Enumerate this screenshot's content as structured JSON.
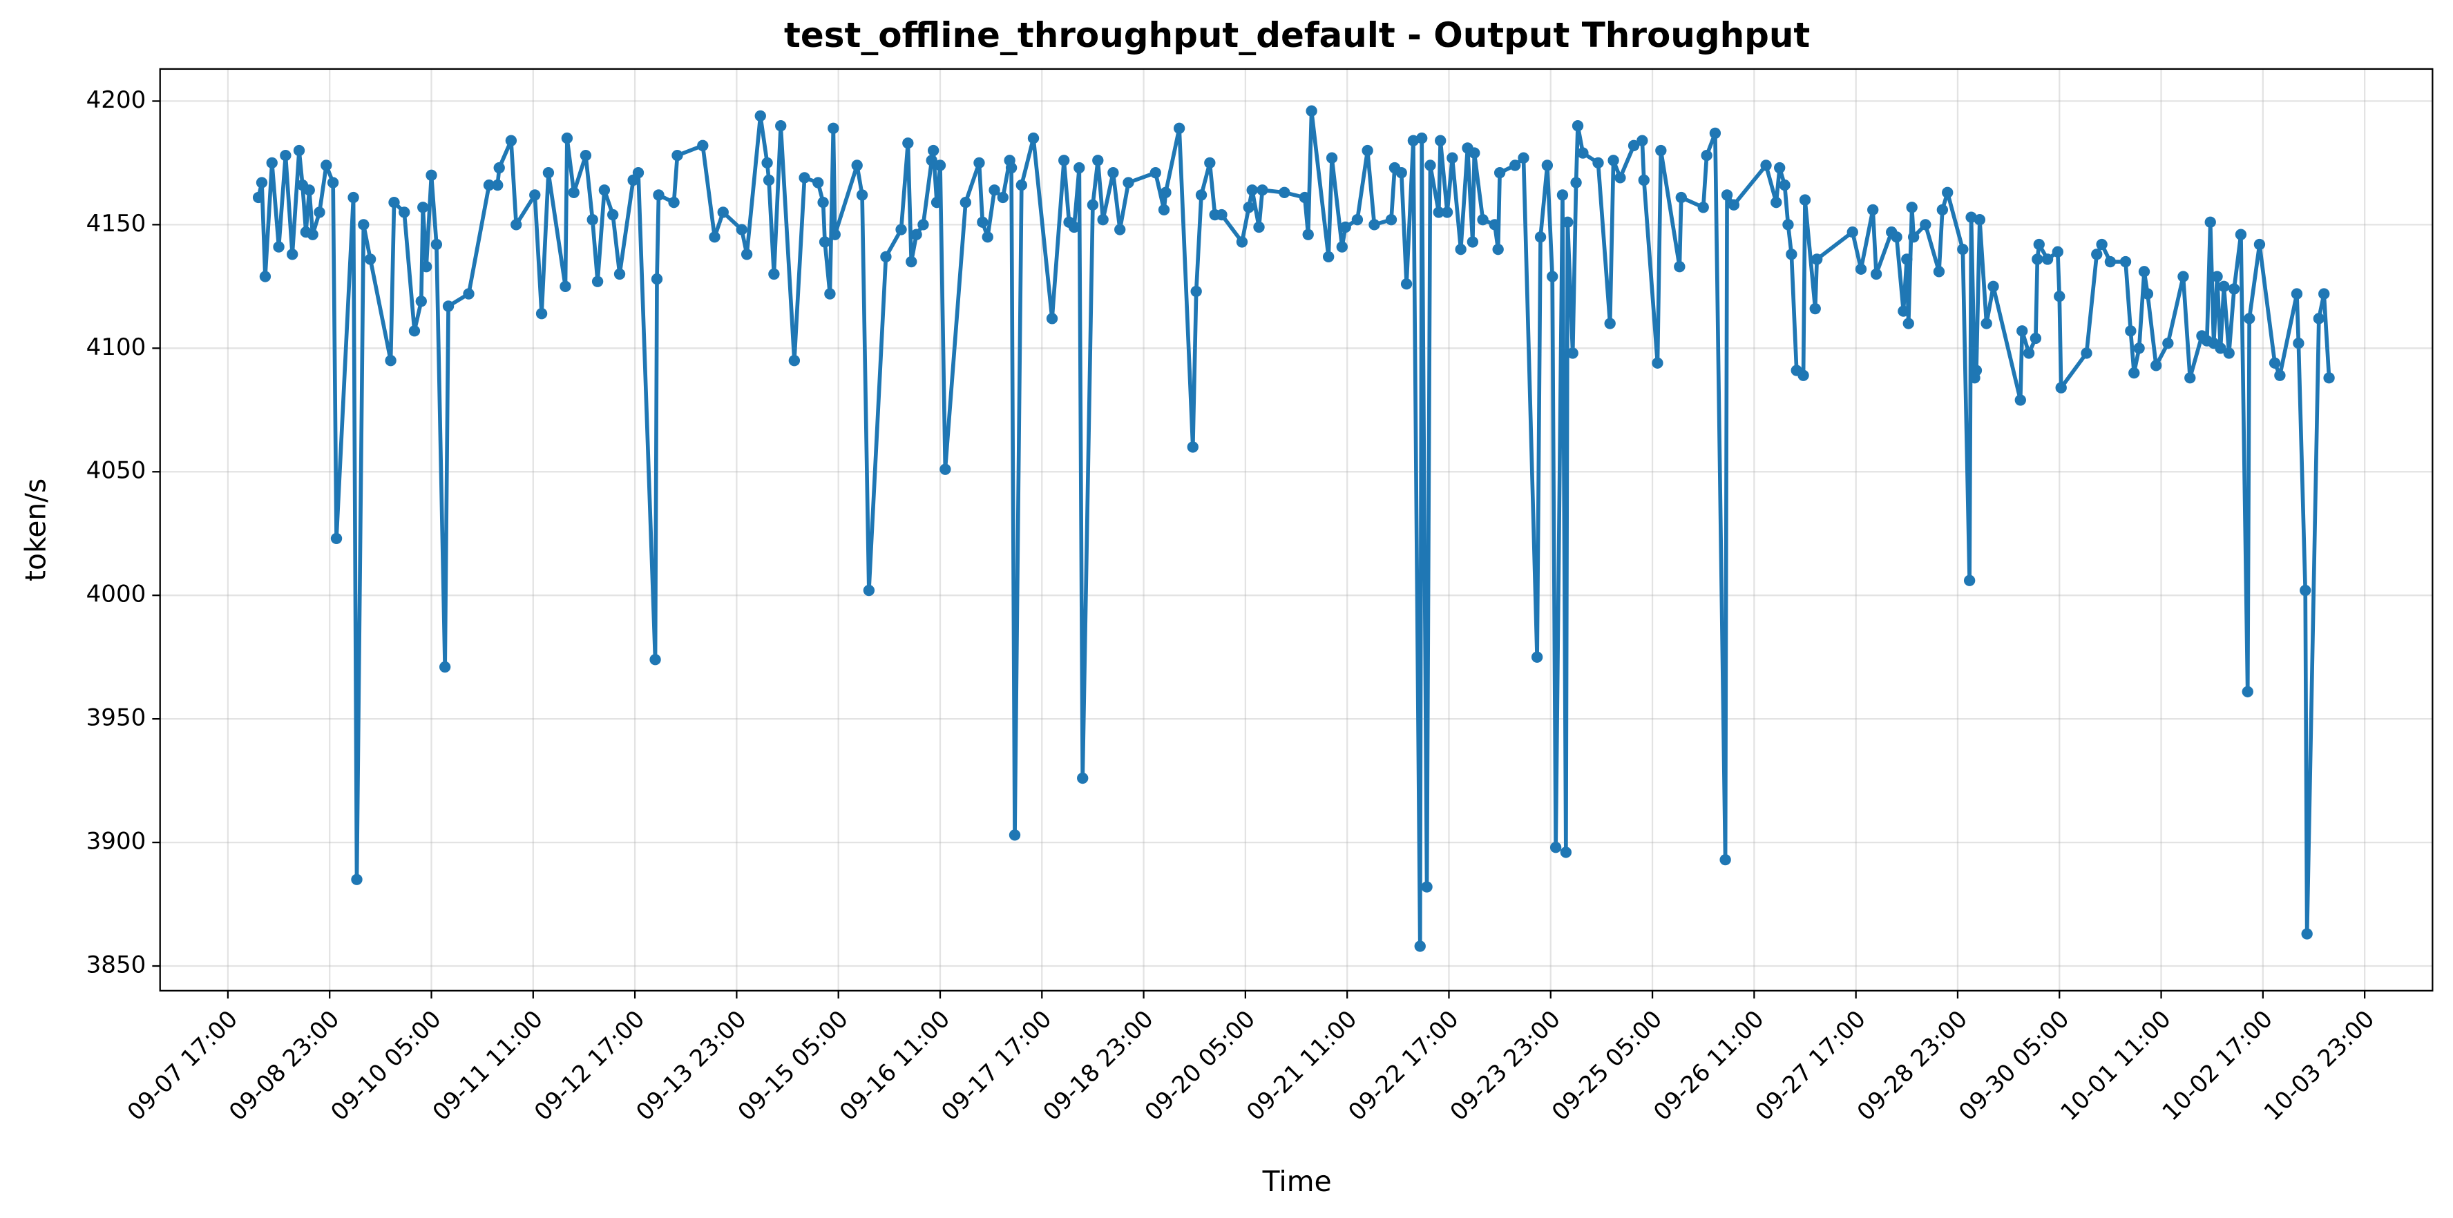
{
  "chart_data": {
    "type": "line",
    "title": "test_offline_throughput_default - Output Throughput",
    "xlabel": "Time",
    "ylabel": "token/s",
    "color": "#1f77b4",
    "grid": true,
    "xlim": [
      "09-06 21:00",
      "10-04 19:00"
    ],
    "xticks": [
      "09-07 17:00",
      "09-08 23:00",
      "09-10 05:00",
      "09-11 11:00",
      "09-12 17:00",
      "09-13 23:00",
      "09-15 05:00",
      "09-16 11:00",
      "09-17 17:00",
      "09-18 23:00",
      "09-20 05:00",
      "09-21 11:00",
      "09-22 17:00",
      "09-23 23:00",
      "09-25 05:00",
      "09-26 11:00",
      "09-27 17:00",
      "09-28 23:00",
      "09-30 05:00",
      "10-01 11:00",
      "10-02 17:00",
      "10-03 23:00"
    ],
    "ylim": [
      3840,
      4213
    ],
    "yticks": [
      3850,
      3900,
      3950,
      4000,
      4050,
      4100,
      4150,
      4200
    ],
    "x": [
      "09-08 02:00",
      "09-08 03:00",
      "09-08 04:00",
      "09-08 06:00",
      "09-08 08:00",
      "09-08 10:00",
      "09-08 12:00",
      "09-08 14:00",
      "09-08 15:00",
      "09-08 16:00",
      "09-08 17:00",
      "09-08 18:00",
      "09-08 20:00",
      "09-08 22:00",
      "09-09 00:00",
      "09-09 01:00",
      "09-09 06:00",
      "09-09 07:00",
      "09-09 09:00",
      "09-09 11:00",
      "09-09 17:00",
      "09-09 18:00",
      "09-09 21:00",
      "09-10 00:00",
      "09-10 02:00",
      "09-10 02:30",
      "09-10 03:30",
      "09-10 05:00",
      "09-10 06:30",
      "09-10 09:00",
      "09-10 10:00",
      "09-10 16:00",
      "09-10 22:00",
      "09-11 00:30",
      "09-11 01:00",
      "09-11 04:30",
      "09-11 06:00",
      "09-11 11:30",
      "09-11 13:30",
      "09-11 15:30",
      "09-11 20:30",
      "09-11 21:00",
      "09-11 23:00",
      "09-12 02:30",
      "09-12 04:30",
      "09-12 06:00",
      "09-12 08:00",
      "09-12 10:30",
      "09-12 12:30",
      "09-12 16:30",
      "09-12 18:00",
      "09-12 23:00",
      "09-12 23:30",
      "09-13 00:00",
      "09-13 04:30",
      "09-13 05:30",
      "09-13 13:00",
      "09-13 16:30",
      "09-13 19:00",
      "09-14 00:30",
      "09-14 02:00",
      "09-14 06:00",
      "09-14 08:00",
      "09-14 08:30",
      "09-14 10:00",
      "09-14 12:00",
      "09-14 16:00",
      "09-14 19:00",
      "09-14 23:00",
      "09-15 00:30",
      "09-15 01:00",
      "09-15 02:30",
      "09-15 03:30",
      "09-15 04:00",
      "09-15 10:30",
      "09-15 12:00",
      "09-15 14:00",
      "09-15 19:00",
      "09-15 23:30",
      "09-16 01:30",
      "09-16 02:30",
      "09-16 04:00",
      "09-16 06:00",
      "09-16 08:30",
      "09-16 09:00",
      "09-16 10:00",
      "09-16 11:00",
      "09-16 12:30",
      "09-16 18:30",
      "09-16 22:30",
      "09-16 23:30",
      "09-17 01:00",
      "09-17 03:00",
      "09-17 05:30",
      "09-17 07:30",
      "09-17 08:00",
      "09-17 09:00",
      "09-17 11:00",
      "09-17 14:30",
      "09-17 20:00",
      "09-17 23:30",
      "09-18 01:00",
      "09-18 02:30",
      "09-18 04:00",
      "09-18 05:00",
      "09-18 08:00",
      "09-18 09:30",
      "09-18 11:00",
      "09-18 14:00",
      "09-18 16:00",
      "09-18 18:30",
      "09-19 02:30",
      "09-19 05:00",
      "09-19 05:30",
      "09-19 09:30",
      "09-19 13:30",
      "09-19 14:30",
      "09-19 16:00",
      "09-19 18:30",
      "09-19 20:00",
      "09-19 22:00",
      "09-20 04:00",
      "09-20 06:00",
      "09-20 07:00",
      "09-20 09:00",
      "09-20 10:00",
      "09-20 16:30",
      "09-20 22:30",
      "09-20 23:30",
      "09-21 00:30",
      "09-21 05:30",
      "09-21 06:30",
      "09-21 09:30",
      "09-21 10:30",
      "09-21 14:00",
      "09-21 17:00",
      "09-21 19:00",
      "09-22 00:00",
      "09-22 01:00",
      "09-22 03:00",
      "09-22 04:30",
      "09-22 06:30",
      "09-22 08:30",
      "09-22 09:00",
      "09-22 10:30",
      "09-22 11:30",
      "09-22 14:00",
      "09-22 14:30",
      "09-22 16:30",
      "09-22 18:00",
      "09-22 20:30",
      "09-22 22:30",
      "09-23 00:00",
      "09-23 00:30",
      "09-23 03:00",
      "09-23 06:30",
      "09-23 07:30",
      "09-23 08:00",
      "09-23 12:30",
      "09-23 15:00",
      "09-23 19:00",
      "09-23 20:00",
      "09-23 22:00",
      "09-23 23:30",
      "09-24 00:30",
      "09-24 02:30",
      "09-24 03:30",
      "09-24 04:00",
      "09-24 05:30",
      "09-24 06:30",
      "09-24 07:00",
      "09-24 08:30",
      "09-24 13:00",
      "09-24 16:30",
      "09-24 17:30",
      "09-24 19:30",
      "09-24 23:30",
      "09-25 02:00",
      "09-25 02:30",
      "09-25 06:30",
      "09-25 07:30",
      "09-25 13:00",
      "09-25 13:30",
      "09-25 20:00",
      "09-25 21:00",
      "09-25 23:30",
      "09-26 02:30",
      "09-26 03:00",
      "09-26 05:00",
      "09-26 14:30",
      "09-26 17:30",
      "09-26 18:30",
      "09-26 20:00",
      "09-26 21:00",
      "09-26 22:00",
      "09-26 23:30",
      "09-27 01:30",
      "09-27 02:00",
      "09-27 05:00",
      "09-27 05:30",
      "09-27 16:00",
      "09-27 18:30",
      "09-27 22:00",
      "09-27 23:00",
      "09-28 03:30",
      "09-28 05:00",
      "09-28 07:00",
      "09-28 08:00",
      "09-28 08:30",
      "09-28 09:30",
      "09-28 10:00",
      "09-28 13:30",
      "09-28 17:30",
      "09-28 18:30",
      "09-28 20:00",
      "09-29 00:30",
      "09-29 02:30",
      "09-29 03:00",
      "09-29 04:00",
      "09-29 04:30",
      "09-29 05:30",
      "09-29 07:30",
      "09-29 09:30",
      "09-29 17:30",
      "09-29 18:00",
      "09-29 20:00",
      "09-29 22:00",
      "09-29 22:30",
      "09-29 23:00",
      "09-30 01:30",
      "09-30 04:30",
      "09-30 05:00",
      "09-30 05:30",
      "09-30 13:00",
      "09-30 16:00",
      "09-30 17:30",
      "09-30 20:00",
      "10-01 00:30",
      "10-01 02:00",
      "10-01 03:00",
      "10-01 04:30",
      "10-01 06:00",
      "10-01 07:00",
      "10-01 09:30",
      "10-01 13:00",
      "10-01 17:30",
      "10-01 19:30",
      "10-01 23:00",
      "10-02 00:30",
      "10-02 01:30",
      "10-02 02:30",
      "10-02 03:30",
      "10-02 04:30",
      "10-02 05:30",
      "10-02 07:00",
      "10-02 08:30",
      "10-02 10:30",
      "10-02 12:30",
      "10-02 13:00",
      "10-02 16:00",
      "10-02 20:30",
      "10-02 22:00",
      "10-03 03:00",
      "10-03 03:30",
      "10-03 05:30",
      "10-03 06:00",
      "10-03 09:30",
      "10-03 11:00",
      "10-03 12:30"
    ],
    "values": [
      4161,
      4167,
      4129,
      4175,
      4141,
      4178,
      4138,
      4180,
      4166,
      4147,
      4164,
      4146,
      4155,
      4174,
      4167,
      4023,
      4161,
      3885,
      4150,
      4136,
      4095,
      4159,
      4155,
      4107,
      4119,
      4157,
      4133,
      4170,
      4142,
      3971,
      4117,
      4122,
      4166,
      4166,
      4173,
      4184,
      4150,
      4162,
      4114,
      4171,
      4125,
      4185,
      4163,
      4178,
      4152,
      4127,
      4164,
      4154,
      4130,
      4168,
      4171,
      3974,
      4128,
      4162,
      4159,
      4178,
      4182,
      4145,
      4155,
      4148,
      4138,
      4194,
      4175,
      4168,
      4130,
      4190,
      4095,
      4169,
      4167,
      4159,
      4143,
      4122,
      4189,
      4146,
      4174,
      4162,
      4002,
      4137,
      4148,
      4183,
      4135,
      4146,
      4150,
      4176,
      4180,
      4159,
      4174,
      4051,
      4159,
      4175,
      4151,
      4145,
      4164,
      4161,
      4176,
      4173,
      3903,
      4166,
      4185,
      4112,
      4176,
      4151,
      4149,
      4173,
      3926,
      4158,
      4176,
      4152,
      4171,
      4148,
      4167,
      4171,
      4156,
      4163,
      4189,
      4060,
      4123,
      4162,
      4175,
      4154,
      4154,
      4143,
      4157,
      4164,
      4149,
      4164,
      4163,
      4161,
      4146,
      4196,
      4137,
      4177,
      4141,
      4149,
      4152,
      4180,
      4150,
      4152,
      4173,
      4171,
      4126,
      4184,
      3858,
      4185,
      3882,
      4174,
      4155,
      4184,
      4155,
      4177,
      4140,
      4181,
      4143,
      4179,
      4152,
      4150,
      4140,
      4171,
      4174,
      4177,
      3975,
      4145,
      4174,
      4129,
      3898,
      4162,
      3896,
      4151,
      4098,
      4167,
      4190,
      4179,
      4175,
      4110,
      4176,
      4169,
      4182,
      4184,
      4168,
      4094,
      4180,
      4133,
      4161,
      4157,
      4178,
      4187,
      3893,
      4162,
      4158,
      4174,
      4159,
      4173,
      4166,
      4150,
      4138,
      4091,
      4089,
      4160,
      4116,
      4136,
      4147,
      4132,
      4156,
      4130,
      4147,
      4145,
      4115,
      4136,
      4110,
      4157,
      4145,
      4150,
      4131,
      4156,
      4163,
      4140,
      4006,
      4153,
      4088,
      4091,
      4152,
      4110,
      4125,
      4079,
      4107,
      4098,
      4104,
      4136,
      4142,
      4136,
      4139,
      4121,
      4084,
      4098,
      4138,
      4142,
      4135,
      4135,
      4107,
      4090,
      4100,
      4131,
      4122,
      4093,
      4102,
      4129,
      4088,
      4105,
      4103,
      4151,
      4102,
      4129,
      4100,
      4125,
      4098,
      4124,
      4146,
      3961,
      4112,
      4142,
      4094,
      4089,
      4122,
      4102,
      4002,
      3863,
      4112,
      4122,
      4088
    ]
  }
}
